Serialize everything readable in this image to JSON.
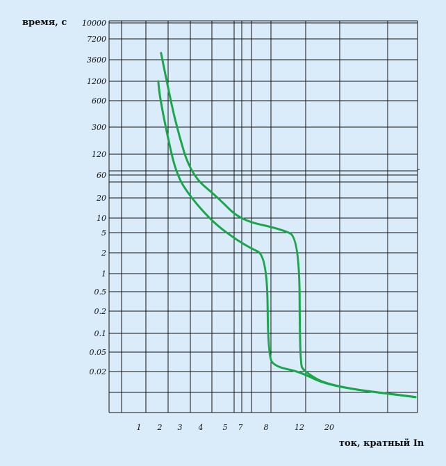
{
  "chart_data": {
    "type": "line",
    "title": "",
    "ylabel": "время, с",
    "xlabel": "ток, кратный In",
    "y_tick_labels": [
      "10000",
      "7200",
      "3600",
      "1200",
      "600",
      "300",
      "120",
      "60",
      "20",
      "10",
      "5",
      "2",
      "1",
      "0.5",
      "0.2",
      "0.1",
      "0.05",
      "0.02"
    ],
    "x_tick_labels": [
      "1",
      "2",
      "3",
      "4",
      "5",
      "7",
      "8",
      "12",
      "20"
    ],
    "grid": true,
    "legend": "none",
    "curve_color": "#1aa64a",
    "series": [
      {
        "points": [
          [
            1.9,
            1200
          ],
          [
            2,
            700
          ],
          [
            2.3,
            250
          ],
          [
            2.8,
            60
          ],
          [
            3.5,
            20
          ],
          [
            4.5,
            8
          ],
          [
            6,
            4
          ],
          [
            7.3,
            2.6
          ],
          [
            8.1,
            1.8
          ],
          [
            8.2,
            0.04
          ],
          [
            9,
            0.025
          ],
          [
            12,
            0.02
          ],
          [
            20,
            0.01
          ],
          [
            60,
            0.006
          ]
        ]
      },
      {
        "points": [
          [
            2.05,
            4500
          ],
          [
            2.3,
            1200
          ],
          [
            2.8,
            300
          ],
          [
            3.5,
            60
          ],
          [
            4.7,
            20
          ],
          [
            7,
            9
          ],
          [
            9.5,
            6
          ],
          [
            12,
            4
          ],
          [
            12.1,
            0.03
          ],
          [
            13,
            0.02
          ],
          [
            20,
            0.01
          ],
          [
            60,
            0.006
          ]
        ]
      }
    ]
  }
}
